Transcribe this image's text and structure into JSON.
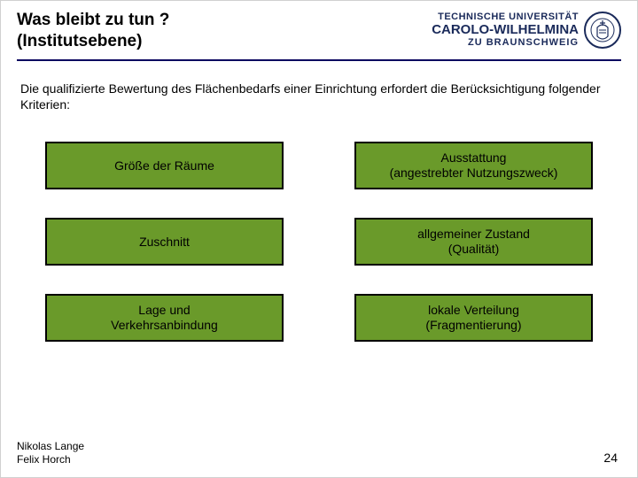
{
  "header": {
    "title_line1": "Was bleibt zu tun ?",
    "title_line2": "(Institutsebene)",
    "university": {
      "top": "TECHNISCHE UNIVERSITÄT",
      "mid": "CAROLO-WILHELMINA",
      "bot": "ZU BRAUNSCHWEIG"
    }
  },
  "intro": "Die qualifizierte Bewertung des Flächenbedarfs einer Einrichtung erfordert die Berücksichtigung folgender Kriterien:",
  "boxes": {
    "r1c1": "Größe der Räume",
    "r1c2": "Ausstattung\n(angestrebter Nutzungszweck)",
    "r2c1": "Zuschnitt",
    "r2c2": "allgemeiner Zustand\n(Qualität)",
    "r3c1": "Lage und\nVerkehrsanbindung",
    "r3c2": "lokale Verteilung\n(Fragmentierung)"
  },
  "footer": {
    "author1": "Nikolas Lange",
    "author2": "Felix Horch"
  },
  "page_number": "24",
  "style": {
    "box_bg": "#6a9a2a",
    "box_border": "#000000",
    "rule_color": "#0b0560",
    "brand_color": "#1a2a5a",
    "font_family": "Arial",
    "title_fontsize_pt": 14,
    "body_fontsize_pt": 10.5,
    "grid_cols": 2,
    "grid_rows": 3
  }
}
